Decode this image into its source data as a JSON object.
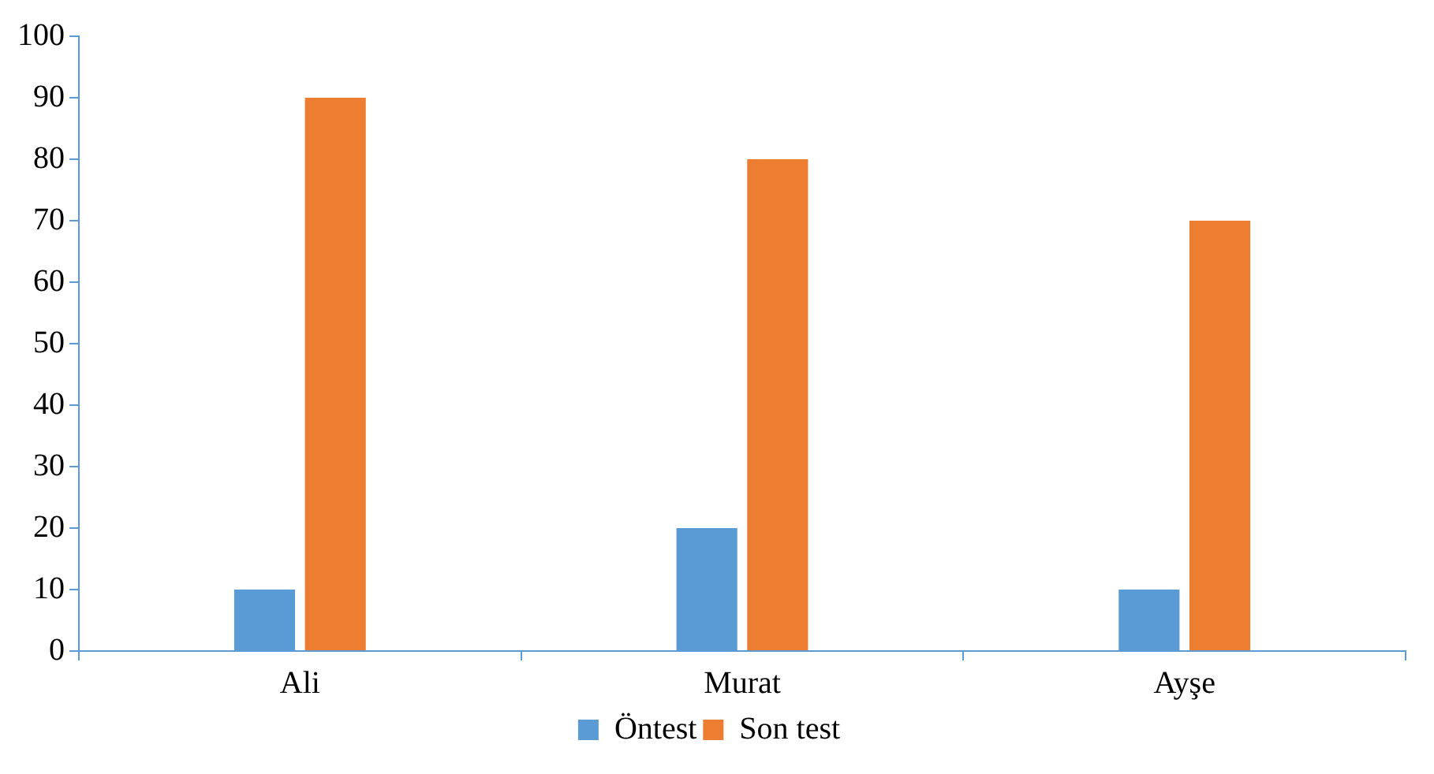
{
  "chart_data": {
    "type": "bar",
    "categories": [
      "Ali",
      "Murat",
      "Ayşe"
    ],
    "series": [
      {
        "name": "Öntest",
        "color": "#5b9bd5",
        "values": [
          10,
          20,
          10
        ]
      },
      {
        "name": "Son test",
        "color": "#ed7d31",
        "values": [
          90,
          80,
          70
        ]
      }
    ],
    "ylim": [
      0,
      100
    ],
    "yticks": [
      0,
      10,
      20,
      30,
      40,
      50,
      60,
      70,
      80,
      90,
      100
    ],
    "grid": false,
    "legend": "bottom"
  }
}
